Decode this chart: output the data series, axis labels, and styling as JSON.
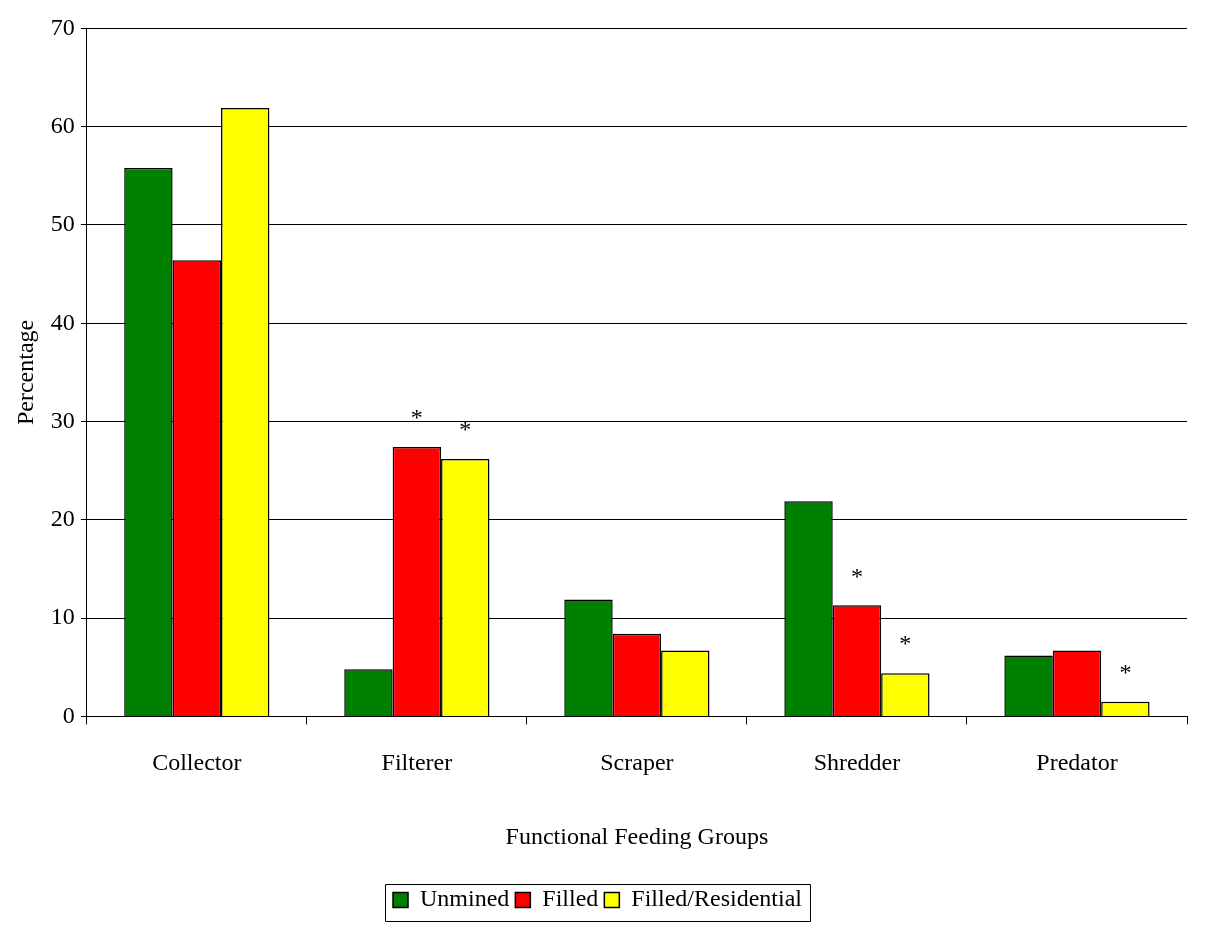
{
  "chart_data": {
    "type": "bar",
    "xlabel": "Functional Feeding Groups",
    "ylabel": "Percentage",
    "categories": [
      "Collector",
      "Filterer",
      "Scraper",
      "Shredder",
      "Predator"
    ],
    "series": [
      {
        "name": "Unmined",
        "color": "#008000",
        "values": [
          55.8,
          4.8,
          11.9,
          21.9,
          6.2
        ]
      },
      {
        "name": "Filled",
        "color": "#ff0000",
        "values": [
          46.4,
          27.4,
          8.4,
          11.3,
          6.7
        ]
      },
      {
        "name": "Filled/Residential",
        "color": "#ffff00",
        "values": [
          61.9,
          26.2,
          6.7,
          4.4,
          1.5
        ]
      }
    ],
    "ylim": [
      0,
      70
    ],
    "yticks": [
      0,
      10,
      20,
      30,
      40,
      50,
      60,
      70
    ],
    "grid": "y",
    "legend": "bottom",
    "annotations": [
      {
        "text": "*",
        "x": "Filterer",
        "y": 27.4
      },
      "*",
      {
        "text": "*",
        "x": "Shredder",
        "y": 11.3
      },
      "*",
      "*"
    ]
  }
}
